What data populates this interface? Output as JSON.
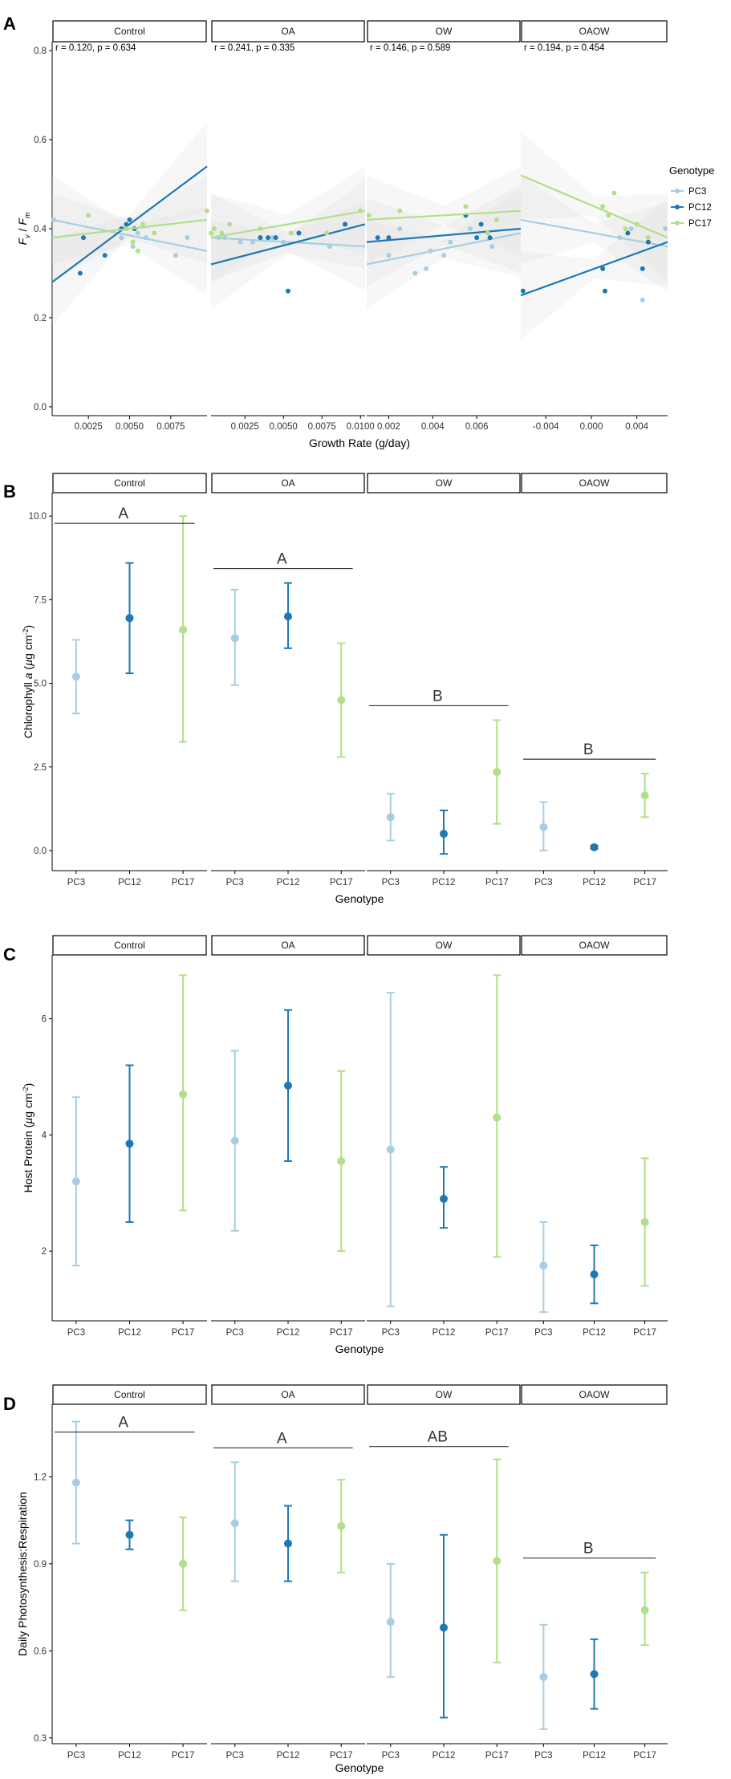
{
  "colors": {
    "PC3": "#a6cee3",
    "PC12": "#1f78b4",
    "PC17": "#b2df8a"
  },
  "facets": [
    "Control",
    "OA",
    "OW",
    "OAOW"
  ],
  "chart_data": [
    {
      "panel": "A",
      "type": "scatter",
      "ylabel": "Fv / Fm",
      "xlabel": "Growth Rate (g/day)",
      "ylim": [
        -0.02,
        0.82
      ],
      "yticks": [
        "0.0",
        "0.2",
        "0.4",
        "0.6",
        "0.8"
      ],
      "legend": {
        "title": "Genotype",
        "items": [
          "PC3",
          "PC12",
          "PC17"
        ]
      },
      "facets": [
        {
          "name": "Control",
          "annotation": "r = 0.120, p = 0.634",
          "xlim": [
            0.0003,
            0.0097
          ],
          "xticks": [
            0.0025,
            0.005,
            0.0075
          ],
          "xticklabels": [
            "0.0025",
            "0.0050",
            "0.0075"
          ],
          "points": {
            "PC3": [
              [
                0.0004,
                0.42
              ],
              [
                0.0045,
                0.38
              ],
              [
                0.0052,
                0.36
              ],
              [
                0.0055,
                0.39
              ],
              [
                0.006,
                0.38
              ],
              [
                0.0078,
                0.34
              ],
              [
                0.0085,
                0.38
              ]
            ],
            "PC12": [
              [
                0.002,
                0.3
              ],
              [
                0.0022,
                0.38
              ],
              [
                0.0035,
                0.34
              ],
              [
                0.0045,
                0.4
              ],
              [
                0.0048,
                0.41
              ],
              [
                0.005,
                0.42
              ],
              [
                0.0053,
                0.4
              ]
            ],
            "PC17": [
              [
                0.0025,
                0.43
              ],
              [
                0.0048,
                0.4
              ],
              [
                0.0052,
                0.37
              ],
              [
                0.0055,
                0.35
              ],
              [
                0.0058,
                0.41
              ],
              [
                0.0065,
                0.39
              ],
              [
                0.0097,
                0.44
              ]
            ]
          },
          "fits": {
            "PC3": [
              [
                0.0003,
                0.42
              ],
              [
                0.0097,
                0.35
              ]
            ],
            "PC12": [
              [
                0.0003,
                0.28
              ],
              [
                0.0097,
                0.54
              ]
            ],
            "PC17": [
              [
                0.0003,
                0.38
              ],
              [
                0.0097,
                0.42
              ]
            ]
          }
        },
        {
          "name": "OA",
          "annotation": "r = 0.241, p = 0.335",
          "xlim": [
            0.0003,
            0.0103
          ],
          "xticks": [
            0.0025,
            0.005,
            0.0075,
            0.01
          ],
          "xticklabels": [
            "0.0025",
            "0.0050",
            "0.0075",
            "0.0100"
          ],
          "points": {
            "PC3": [
              [
                0.0008,
                0.38
              ],
              [
                0.0012,
                0.38
              ],
              [
                0.0022,
                0.37
              ],
              [
                0.003,
                0.37
              ],
              [
                0.0043,
                0.38
              ],
              [
                0.005,
                0.37
              ],
              [
                0.008,
                0.36
              ]
            ],
            "PC12": [
              [
                0.0035,
                0.38
              ],
              [
                0.004,
                0.38
              ],
              [
                0.0045,
                0.38
              ],
              [
                0.0053,
                0.26
              ],
              [
                0.006,
                0.39
              ],
              [
                0.009,
                0.41
              ]
            ],
            "PC17": [
              [
                0.0003,
                0.39
              ],
              [
                0.0005,
                0.4
              ],
              [
                0.001,
                0.39
              ],
              [
                0.0015,
                0.41
              ],
              [
                0.0035,
                0.4
              ],
              [
                0.0055,
                0.39
              ],
              [
                0.0078,
                0.39
              ],
              [
                0.01,
                0.44
              ]
            ]
          },
          "fits": {
            "PC3": [
              [
                0.0003,
                0.38
              ],
              [
                0.0103,
                0.36
              ]
            ],
            "PC12": [
              [
                0.0003,
                0.32
              ],
              [
                0.0103,
                0.41
              ]
            ],
            "PC17": [
              [
                0.0003,
                0.38
              ],
              [
                0.0103,
                0.44
              ]
            ]
          }
        },
        {
          "name": "OW",
          "annotation": "r = 0.146, p = 0.589",
          "xlim": [
            0.001,
            0.008
          ],
          "xticks": [
            0.002,
            0.004,
            0.006
          ],
          "xticklabels": [
            "0.002",
            "0.004",
            "0.006"
          ],
          "points": {
            "PC3": [
              [
                0.002,
                0.34
              ],
              [
                0.0025,
                0.4
              ],
              [
                0.0032,
                0.3
              ],
              [
                0.0037,
                0.31
              ],
              [
                0.0039,
                0.35
              ],
              [
                0.0045,
                0.34
              ],
              [
                0.0048,
                0.37
              ],
              [
                0.0057,
                0.4
              ],
              [
                0.0067,
                0.36
              ]
            ],
            "PC12": [
              [
                0.0015,
                0.38
              ],
              [
                0.002,
                0.38
              ],
              [
                0.0055,
                0.43
              ],
              [
                0.006,
                0.38
              ],
              [
                0.0062,
                0.41
              ],
              [
                0.0066,
                0.38
              ]
            ],
            "PC17": [
              [
                0.0011,
                0.43
              ],
              [
                0.0025,
                0.44
              ],
              [
                0.0055,
                0.45
              ],
              [
                0.0065,
                0.39
              ],
              [
                0.0069,
                0.42
              ]
            ]
          },
          "fits": {
            "PC3": [
              [
                0.001,
                0.32
              ],
              [
                0.008,
                0.39
              ]
            ],
            "PC12": [
              [
                0.001,
                0.37
              ],
              [
                0.008,
                0.4
              ]
            ],
            "PC17": [
              [
                0.001,
                0.42
              ],
              [
                0.008,
                0.44
              ]
            ]
          }
        },
        {
          "name": "OAOW",
          "annotation": "r = 0.194, p = 0.454",
          "xlim": [
            -0.0062,
            0.0067
          ],
          "xticks": [
            -0.004,
            0.0,
            0.004
          ],
          "xticklabels": [
            "-0.004",
            "0.000",
            "0.004"
          ],
          "points": {
            "PC3": [
              [
                0.0025,
                0.38
              ],
              [
                0.0035,
                0.4
              ],
              [
                0.0045,
                0.24
              ],
              [
                0.0065,
                0.4
              ]
            ],
            "PC12": [
              [
                -0.006,
                0.26
              ],
              [
                0.001,
                0.31
              ],
              [
                0.0012,
                0.26
              ],
              [
                0.0032,
                0.39
              ],
              [
                0.0045,
                0.31
              ],
              [
                0.005,
                0.37
              ]
            ],
            "PC17": [
              [
                0.001,
                0.45
              ],
              [
                0.0015,
                0.43
              ],
              [
                0.002,
                0.48
              ],
              [
                0.003,
                0.4
              ],
              [
                0.004,
                0.41
              ],
              [
                0.005,
                0.38
              ]
            ]
          },
          "fits": {
            "PC3": [
              [
                -0.0062,
                0.42
              ],
              [
                0.0067,
                0.36
              ]
            ],
            "PC12": [
              [
                -0.0062,
                0.25
              ],
              [
                0.0067,
                0.37
              ]
            ],
            "PC17": [
              [
                -0.0062,
                0.52
              ],
              [
                0.0067,
                0.38
              ]
            ]
          }
        }
      ]
    },
    {
      "panel": "B",
      "type": "errorbar",
      "xlabel": "Genotype",
      "ylabel": "Chlorophyll a (µg cm-2)",
      "ylim": [
        -0.6,
        10.7
      ],
      "yticks": [
        "0.0",
        "2.5",
        "5.0",
        "7.5",
        "10.0"
      ],
      "categories": [
        "PC3",
        "PC12",
        "PC17"
      ],
      "facets": [
        {
          "name": "Control",
          "sig": "A",
          "values": [
            {
              "g": "PC3",
              "mean": 5.2,
              "lo": 4.1,
              "hi": 6.3
            },
            {
              "g": "PC12",
              "mean": 6.95,
              "lo": 5.3,
              "hi": 8.6
            },
            {
              "g": "PC17",
              "mean": 6.6,
              "lo": 3.25,
              "hi": 10.0
            }
          ]
        },
        {
          "name": "OA",
          "sig": "A",
          "values": [
            {
              "g": "PC3",
              "mean": 6.35,
              "lo": 4.95,
              "hi": 7.8
            },
            {
              "g": "PC12",
              "mean": 7.0,
              "lo": 6.05,
              "hi": 8.0
            },
            {
              "g": "PC17",
              "mean": 4.5,
              "lo": 2.8,
              "hi": 6.2
            }
          ]
        },
        {
          "name": "OW",
          "sig": "B",
          "values": [
            {
              "g": "PC3",
              "mean": 1.0,
              "lo": 0.3,
              "hi": 1.7
            },
            {
              "g": "PC12",
              "mean": 0.5,
              "lo": -0.1,
              "hi": 1.2
            },
            {
              "g": "PC17",
              "mean": 2.35,
              "lo": 0.8,
              "hi": 3.9
            }
          ]
        },
        {
          "name": "OAOW",
          "sig": "B",
          "values": [
            {
              "g": "PC3",
              "mean": 0.7,
              "lo": 0.0,
              "hi": 1.45
            },
            {
              "g": "PC12",
              "mean": 0.1,
              "lo": 0.05,
              "hi": 0.15
            },
            {
              "g": "PC17",
              "mean": 1.65,
              "lo": 1.0,
              "hi": 2.3
            }
          ]
        }
      ]
    },
    {
      "panel": "C",
      "type": "errorbar",
      "xlabel": "Genotype",
      "ylabel": "Host Protein (µg cm-2)",
      "ylim": [
        0.8,
        7.1
      ],
      "yticks": [
        "2",
        "4",
        "6"
      ],
      "categories": [
        "PC3",
        "PC12",
        "PC17"
      ],
      "facets": [
        {
          "name": "Control",
          "values": [
            {
              "g": "PC3",
              "mean": 3.2,
              "lo": 1.75,
              "hi": 4.65
            },
            {
              "g": "PC12",
              "mean": 3.85,
              "lo": 2.5,
              "hi": 5.2
            },
            {
              "g": "PC17",
              "mean": 4.7,
              "lo": 2.7,
              "hi": 6.75
            }
          ]
        },
        {
          "name": "OA",
          "values": [
            {
              "g": "PC3",
              "mean": 3.9,
              "lo": 2.35,
              "hi": 5.45
            },
            {
              "g": "PC12",
              "mean": 4.85,
              "lo": 3.55,
              "hi": 6.15
            },
            {
              "g": "PC17",
              "mean": 3.55,
              "lo": 2.0,
              "hi": 5.1
            }
          ]
        },
        {
          "name": "OW",
          "values": [
            {
              "g": "PC3",
              "mean": 3.75,
              "lo": 1.05,
              "hi": 6.45
            },
            {
              "g": "PC12",
              "mean": 2.9,
              "lo": 2.4,
              "hi": 3.45
            },
            {
              "g": "PC17",
              "mean": 4.3,
              "lo": 1.9,
              "hi": 6.75
            }
          ]
        },
        {
          "name": "OAOW",
          "values": [
            {
              "g": "PC3",
              "mean": 1.75,
              "lo": 0.95,
              "hi": 2.5
            },
            {
              "g": "PC12",
              "mean": 1.6,
              "lo": 1.1,
              "hi": 2.1
            },
            {
              "g": "PC17",
              "mean": 2.5,
              "lo": 1.4,
              "hi": 3.6
            }
          ]
        }
      ]
    },
    {
      "panel": "D",
      "type": "errorbar",
      "xlabel": "Genotype",
      "ylabel": "Daily Photosynthesis:Respiration",
      "ylim": [
        0.28,
        1.45
      ],
      "yticks": [
        "0.3",
        "0.6",
        "0.9",
        "1.2"
      ],
      "categories": [
        "PC3",
        "PC12",
        "PC17"
      ],
      "facets": [
        {
          "name": "Control",
          "sig": "A",
          "values": [
            {
              "g": "PC3",
              "mean": 1.18,
              "lo": 0.97,
              "hi": 1.39
            },
            {
              "g": "PC12",
              "mean": 1.0,
              "lo": 0.95,
              "hi": 1.05
            },
            {
              "g": "PC17",
              "mean": 0.9,
              "lo": 0.74,
              "hi": 1.06
            }
          ]
        },
        {
          "name": "OA",
          "sig": "A",
          "values": [
            {
              "g": "PC3",
              "mean": 1.04,
              "lo": 0.84,
              "hi": 1.25
            },
            {
              "g": "PC12",
              "mean": 0.97,
              "lo": 0.84,
              "hi": 1.1
            },
            {
              "g": "PC17",
              "mean": 1.03,
              "lo": 0.87,
              "hi": 1.19
            }
          ]
        },
        {
          "name": "OW",
          "sig": "AB",
          "values": [
            {
              "g": "PC3",
              "mean": 0.7,
              "lo": 0.51,
              "hi": 0.9
            },
            {
              "g": "PC12",
              "mean": 0.68,
              "lo": 0.37,
              "hi": 1.0
            },
            {
              "g": "PC17",
              "mean": 0.91,
              "lo": 0.56,
              "hi": 1.26
            }
          ]
        },
        {
          "name": "OAOW",
          "sig": "B",
          "values": [
            {
              "g": "PC3",
              "mean": 0.51,
              "lo": 0.33,
              "hi": 0.69
            },
            {
              "g": "PC12",
              "mean": 0.52,
              "lo": 0.4,
              "hi": 0.64
            },
            {
              "g": "PC17",
              "mean": 0.74,
              "lo": 0.62,
              "hi": 0.87
            }
          ]
        }
      ]
    }
  ]
}
